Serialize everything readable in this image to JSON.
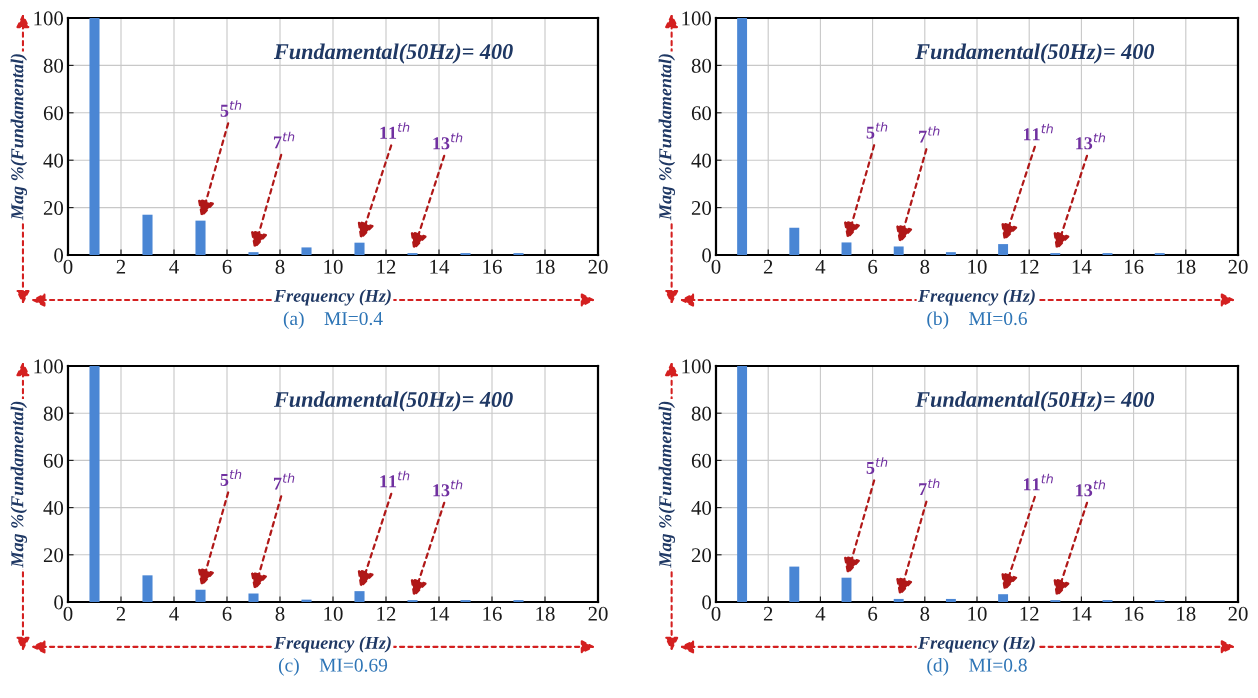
{
  "chart_data": [
    {
      "type": "bar",
      "title": "(a)    MI=0.4",
      "xlabel": "Frequency (Hz)",
      "ylabel": "Mag %(Fundamental)",
      "x": [
        1,
        3,
        5,
        7,
        9,
        11,
        13,
        15,
        17
      ],
      "values": [
        100,
        17,
        14.5,
        1.2,
        3.2,
        5.2,
        0.8,
        0.8,
        0.8
      ],
      "color": "#4a86d4",
      "xlim": [
        0,
        20
      ],
      "xticks": [
        0,
        2,
        4,
        6,
        8,
        10,
        12,
        14,
        16,
        18,
        20
      ],
      "ylim": [
        0,
        100
      ],
      "yticks": [
        0,
        20,
        40,
        60,
        80,
        100
      ],
      "grid": true,
      "annotations": [
        "Fundamental(50Hz)= 400",
        {
          "text": "5$^{th}$",
          "x": 5,
          "y": 14.5
        },
        {
          "text": "7$^{th}$",
          "x": 7,
          "y": 1.2
        },
        {
          "text": "11$^{th}$",
          "x": 11,
          "y": 5.2
        },
        {
          "text": "13$^{th}$",
          "x": 13,
          "y": 0.8
        }
      ]
    },
    {
      "type": "bar",
      "title": "(b)    MI=0.6",
      "xlabel": "Frequency (Hz)",
      "ylabel": "Mag %(Fundamental)",
      "x": [
        1,
        3,
        5,
        7,
        9,
        11,
        13,
        15,
        17
      ],
      "values": [
        100,
        11.5,
        5.3,
        3.6,
        1.2,
        4.6,
        0.8,
        0.8,
        0.8
      ],
      "color": "#4a86d4",
      "xlim": [
        0,
        20
      ],
      "xticks": [
        0,
        2,
        4,
        6,
        8,
        10,
        12,
        14,
        16,
        18,
        20
      ],
      "ylim": [
        0,
        100
      ],
      "yticks": [
        0,
        20,
        40,
        60,
        80,
        100
      ],
      "grid": true,
      "annotations": [
        "Fundamental(50Hz)= 400",
        {
          "text": "5$^{th}$",
          "x": 5,
          "y": 5.3
        },
        {
          "text": "7$^{th}$",
          "x": 7,
          "y": 3.6
        },
        {
          "text": "11$^{th}$",
          "x": 11,
          "y": 4.6
        },
        {
          "text": "13$^{th}$",
          "x": 13,
          "y": 0.8
        }
      ]
    },
    {
      "type": "bar",
      "title": "(c)    MI=0.69",
      "xlabel": "Frequency (Hz)",
      "ylabel": "Mag %(Fundamental)",
      "x": [
        1,
        3,
        5,
        7,
        9,
        11,
        13,
        15,
        17
      ],
      "values": [
        100,
        11.3,
        5.2,
        3.6,
        1.0,
        4.6,
        0.8,
        0.8,
        0.8
      ],
      "color": "#4a86d4",
      "xlim": [
        0,
        20
      ],
      "xticks": [
        0,
        2,
        4,
        6,
        8,
        10,
        12,
        14,
        16,
        18,
        20
      ],
      "ylim": [
        0,
        100
      ],
      "yticks": [
        0,
        20,
        40,
        60,
        80,
        100
      ],
      "grid": true,
      "annotations": [
        "Fundamental(50Hz)= 400",
        {
          "text": "5$^{th}$",
          "x": 5,
          "y": 5.2
        },
        {
          "text": "7$^{th}$",
          "x": 7,
          "y": 3.6
        },
        {
          "text": "11$^{th}$",
          "x": 11,
          "y": 4.6
        },
        {
          "text": "13$^{th}$",
          "x": 13,
          "y": 0.8
        }
      ]
    },
    {
      "type": "bar",
      "title": "(d)    MI=0.8",
      "xlabel": "Frequency (Hz)",
      "ylabel": "Mag %(Fundamental)",
      "x": [
        1,
        3,
        5,
        7,
        9,
        11,
        13,
        15,
        17
      ],
      "values": [
        100,
        15,
        10.3,
        1.3,
        1.3,
        3.3,
        0.8,
        0.8,
        0.8
      ],
      "color": "#4a86d4",
      "xlim": [
        0,
        20
      ],
      "xticks": [
        0,
        2,
        4,
        6,
        8,
        10,
        12,
        14,
        16,
        18,
        20
      ],
      "ylim": [
        0,
        100
      ],
      "yticks": [
        0,
        20,
        40,
        60,
        80,
        100
      ],
      "grid": true,
      "annotations": [
        "Fundamental(50Hz)= 400",
        {
          "text": "5$^{th}$",
          "x": 5,
          "y": 10.3
        },
        {
          "text": "7$^{th}$",
          "x": 7,
          "y": 1.3
        },
        {
          "text": "11$^{th}$",
          "x": 11,
          "y": 3.3
        },
        {
          "text": "13$^{th}$",
          "x": 13,
          "y": 0.8
        }
      ]
    }
  ]
}
